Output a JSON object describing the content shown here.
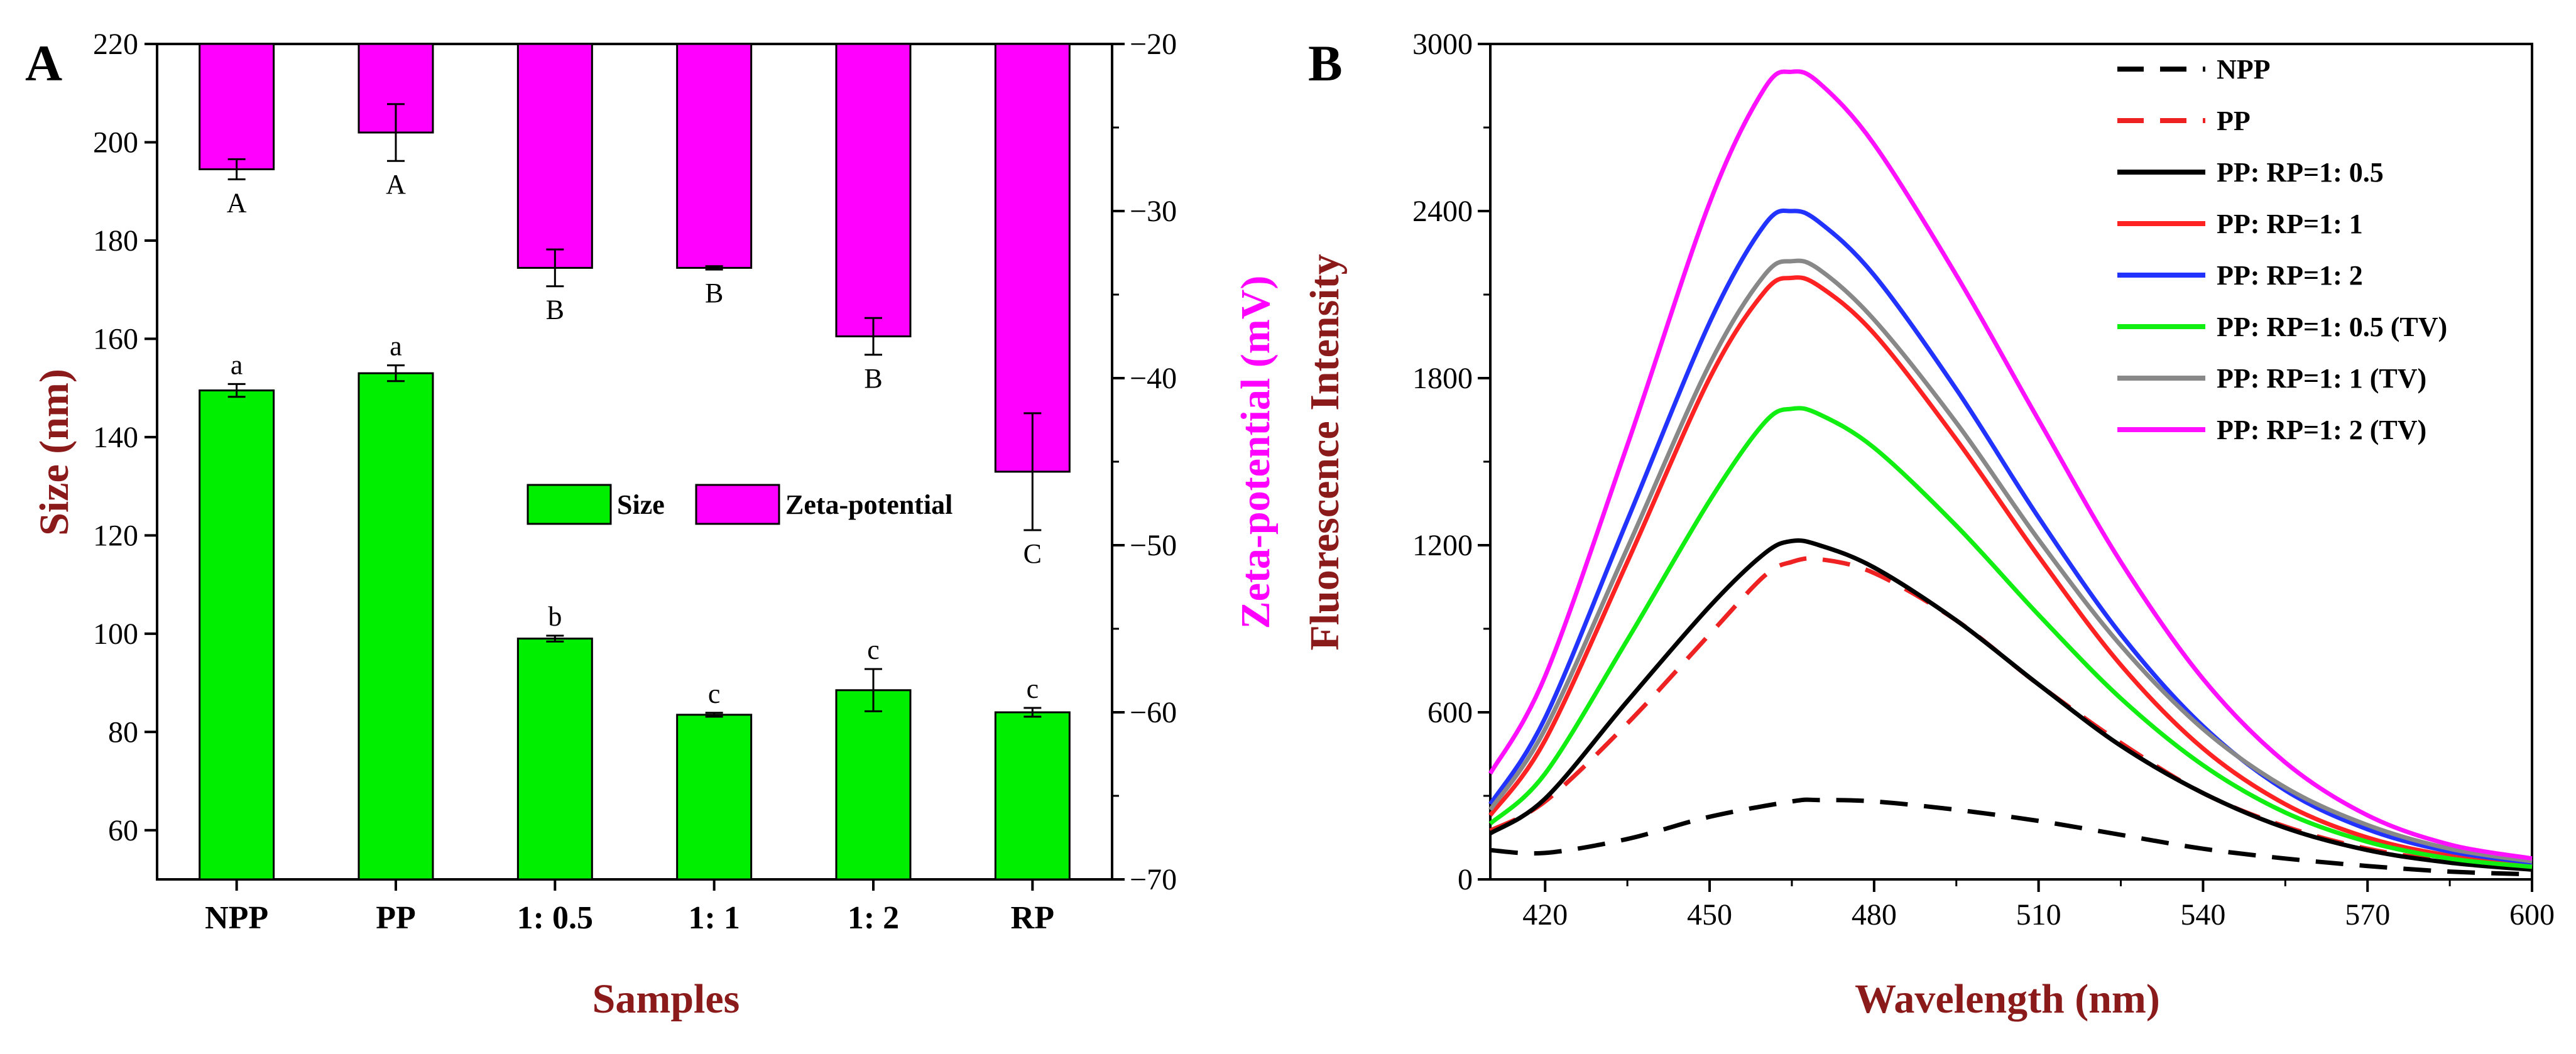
{
  "colors": {
    "size_bar": "#00ee00",
    "zeta_bar": "#ff00ff",
    "label_dark_red": "#8b1a1a",
    "zeta_label": "#ff00ff",
    "axis": "#000000"
  },
  "chart_data": [
    {
      "panel_label": "A",
      "type": "bar",
      "xlabel": "Samples",
      "ylabel": "Size (nm)",
      "y2label": "Zeta-potential (mV)",
      "categories": [
        "NPP",
        "PP",
        "1: 0.5",
        "1: 1",
        "1: 2",
        "RP"
      ],
      "ylim": [
        50,
        220
      ],
      "y_ticks": [
        60,
        80,
        100,
        120,
        140,
        160,
        180,
        200,
        220
      ],
      "y2lim": [
        -70,
        -20
      ],
      "y2_ticks": [
        -70,
        -60,
        -50,
        -40,
        -30,
        -20
      ],
      "legend": {
        "position": "center-right",
        "entries": [
          "Size",
          "Zeta-potential"
        ]
      },
      "series": [
        {
          "name": "Size",
          "axis": "left",
          "values": [
            149.5,
            153,
            99,
            83.5,
            88.5,
            84
          ],
          "errors": [
            1.3,
            1.6,
            0.6,
            0.4,
            4.3,
            0.9
          ],
          "letters": [
            "a",
            "a",
            "b",
            "c",
            "c",
            "c"
          ]
        },
        {
          "name": "Zeta-potential",
          "axis": "right",
          "values": [
            -27.5,
            -25.3,
            -33.4,
            -33.4,
            -37.5,
            -45.6
          ],
          "errors": [
            0.6,
            1.7,
            1.1,
            0.1,
            1.1,
            3.5
          ],
          "letters": [
            "A",
            "A",
            "B",
            "B",
            "B",
            "C"
          ]
        }
      ]
    },
    {
      "panel_label": "B",
      "type": "line",
      "xlabel": "Wavelength (nm)",
      "ylabel": "Fluorescence Intensity",
      "xlim": [
        410,
        600
      ],
      "x_ticks": [
        420,
        450,
        480,
        510,
        540,
        570,
        600
      ],
      "ylim": [
        0,
        3000
      ],
      "y_ticks": [
        0,
        600,
        1200,
        1800,
        2400,
        3000
      ],
      "legend": {
        "position": "top-right"
      },
      "series": [
        {
          "name": "NPP",
          "color": "#000000",
          "dashed": true,
          "x": [
            410,
            420,
            435,
            450,
            465,
            470,
            480,
            495,
            510,
            525,
            540,
            555,
            570,
            585,
            600
          ],
          "y": [
            105,
            95,
            145,
            225,
            280,
            285,
            280,
            250,
            210,
            160,
            110,
            75,
            48,
            28,
            18
          ]
        },
        {
          "name": "PP",
          "color": "#ee2222",
          "dashed": true,
          "x": [
            410,
            420,
            435,
            450,
            460,
            465,
            470,
            480,
            495,
            510,
            525,
            540,
            555,
            570,
            585,
            600
          ],
          "y": [
            175,
            280,
            560,
            880,
            1090,
            1140,
            1150,
            1100,
            930,
            700,
            490,
            310,
            190,
            110,
            65,
            40
          ]
        },
        {
          "name": "PP: RP=1: 0.5",
          "color": "#000000",
          "dashed": false,
          "x": [
            410,
            420,
            435,
            450,
            460,
            465,
            470,
            480,
            495,
            510,
            525,
            540,
            555,
            570,
            585,
            600
          ],
          "y": [
            165,
            290,
            640,
            980,
            1170,
            1215,
            1200,
            1120,
            930,
            700,
            480,
            310,
            185,
            105,
            60,
            35
          ]
        },
        {
          "name": "PP: RP=1: 1",
          "color": "#ff2222",
          "dashed": false,
          "x": [
            410,
            420,
            435,
            450,
            460,
            465,
            470,
            480,
            495,
            510,
            525,
            540,
            555,
            570,
            585,
            600
          ],
          "y": [
            230,
            500,
            1140,
            1800,
            2110,
            2160,
            2130,
            1960,
            1580,
            1160,
            770,
            470,
            270,
            150,
            85,
            50
          ]
        },
        {
          "name": "PP: RP=1: 2",
          "color": "#2233ff",
          "dashed": false,
          "x": [
            410,
            420,
            435,
            450,
            460,
            465,
            470,
            480,
            495,
            510,
            525,
            540,
            555,
            570,
            585,
            600
          ],
          "y": [
            270,
            580,
            1290,
            2000,
            2350,
            2400,
            2360,
            2170,
            1760,
            1300,
            880,
            550,
            320,
            180,
            100,
            60
          ]
        },
        {
          "name": "PP: RP=1: 0.5 (TV)",
          "color": "#11ee11",
          "dashed": false,
          "x": [
            410,
            420,
            435,
            450,
            460,
            465,
            470,
            480,
            495,
            510,
            525,
            540,
            555,
            570,
            585,
            600
          ],
          "y": [
            200,
            380,
            860,
            1360,
            1640,
            1690,
            1670,
            1550,
            1270,
            950,
            650,
            410,
            240,
            135,
            75,
            45
          ]
        },
        {
          "name": "PP: RP=1: 1 (TV)",
          "color": "#888888",
          "dashed": false,
          "x": [
            410,
            420,
            435,
            450,
            460,
            465,
            470,
            480,
            495,
            510,
            525,
            540,
            555,
            570,
            585,
            600
          ],
          "y": [
            250,
            540,
            1190,
            1850,
            2170,
            2220,
            2190,
            2010,
            1640,
            1220,
            840,
            540,
            330,
            195,
            110,
            65
          ]
        },
        {
          "name": "PP: RP=1: 2 (TV)",
          "color": "#ff11ff",
          "dashed": false,
          "x": [
            410,
            420,
            435,
            450,
            460,
            465,
            470,
            480,
            495,
            510,
            525,
            540,
            555,
            570,
            585,
            600
          ],
          "y": [
            380,
            730,
            1560,
            2430,
            2840,
            2900,
            2860,
            2640,
            2170,
            1650,
            1140,
            720,
            420,
            230,
            125,
            75
          ]
        }
      ]
    }
  ]
}
